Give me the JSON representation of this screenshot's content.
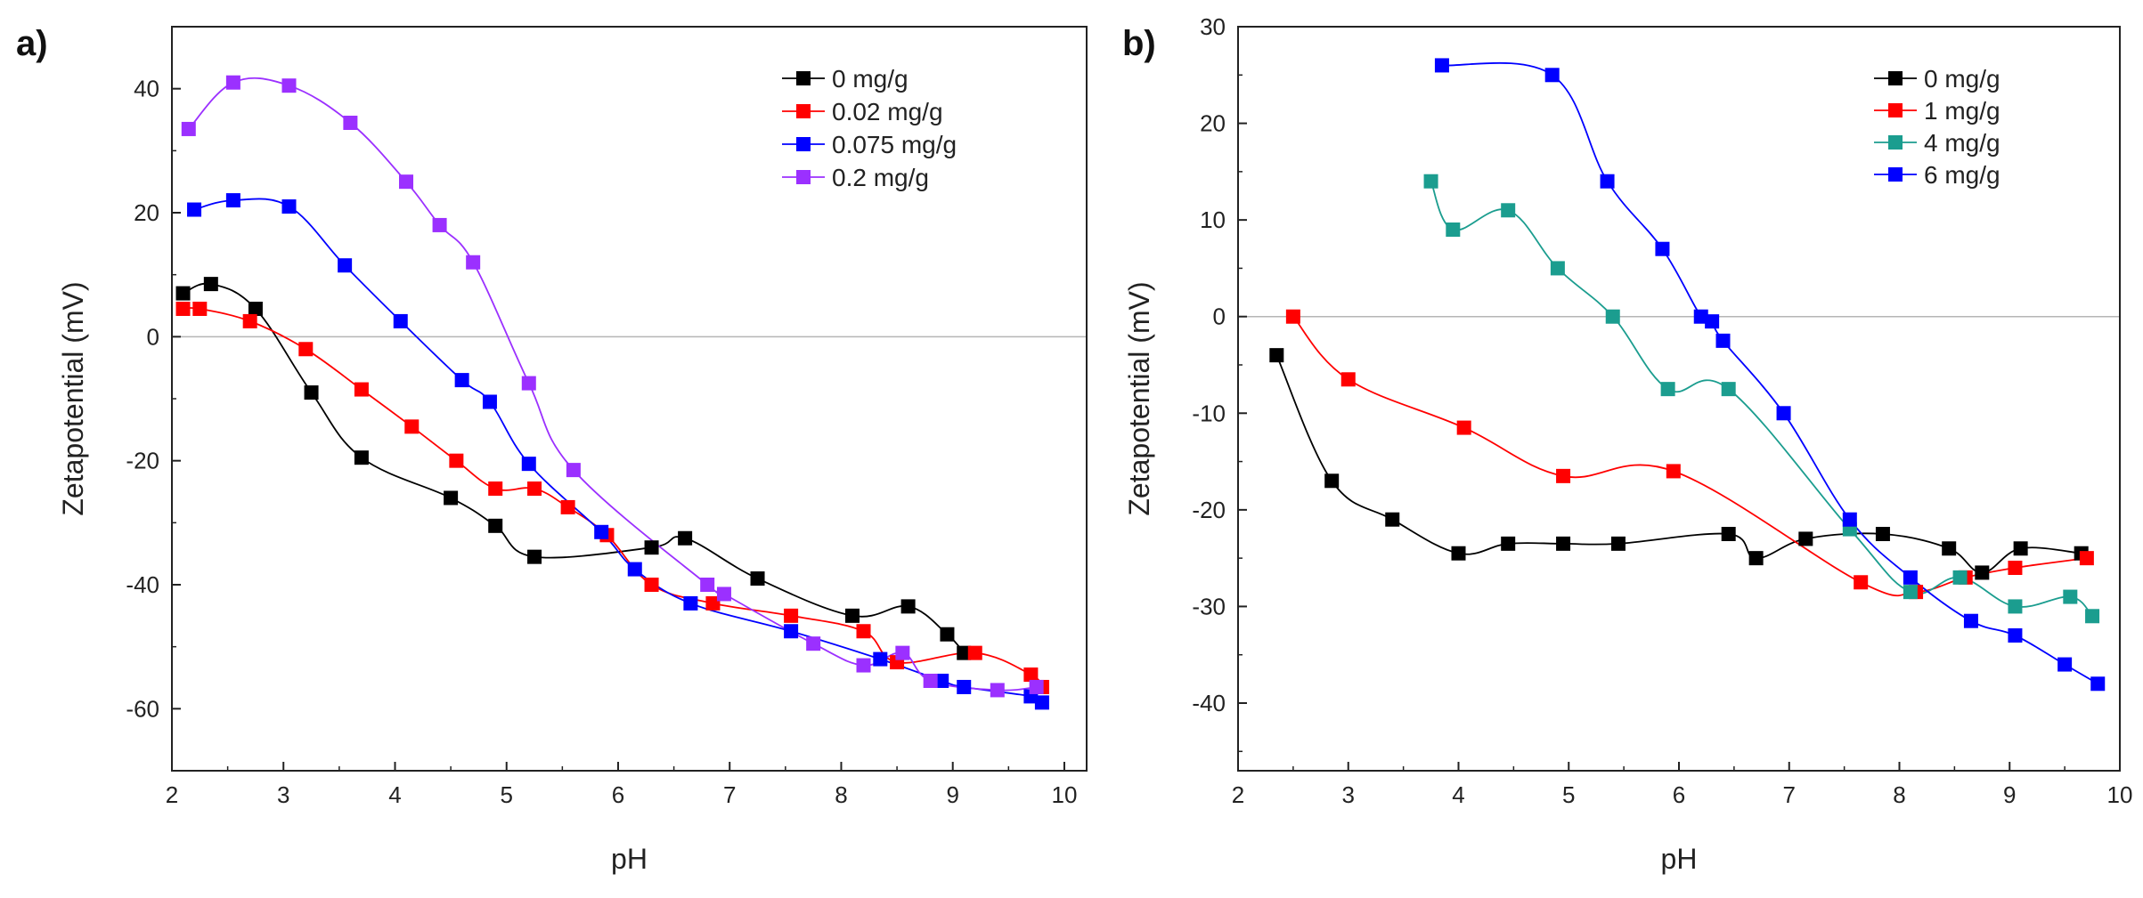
{
  "chart_data": [
    {
      "panel_label": "a)",
      "type": "scatter",
      "title": "",
      "xlabel": "pH",
      "ylabel": "Zetapotential (mV)",
      "xlim": [
        2,
        10.2
      ],
      "ylim": [
        -70,
        50
      ],
      "xticks": [
        2,
        3,
        4,
        5,
        6,
        7,
        8,
        9,
        10
      ],
      "yticks": [
        -60,
        -40,
        -20,
        0,
        20,
        40
      ],
      "zero_line": true,
      "legend_position": "top-right",
      "series": [
        {
          "name": "0 mg/g",
          "color": "#000000",
          "x": [
            2.1,
            2.35,
            2.75,
            3.25,
            3.7,
            4.5,
            4.9,
            5.25,
            6.3,
            6.6,
            7.25,
            8.1,
            8.6,
            8.95,
            9.1
          ],
          "y": [
            7,
            8.5,
            4.5,
            -9,
            -19.5,
            -26,
            -30.5,
            -35.5,
            -34,
            -32.5,
            -39,
            -45,
            -43.5,
            -48,
            -51
          ]
        },
        {
          "name": "0.02 mg/g",
          "color": "#ff0000",
          "x": [
            2.1,
            2.25,
            2.7,
            3.2,
            3.7,
            4.15,
            4.55,
            4.9,
            5.25,
            5.55,
            5.9,
            6.3,
            6.85,
            7.55,
            8.2,
            8.5,
            9.2,
            9.7,
            9.8
          ],
          "y": [
            4.5,
            4.5,
            2.5,
            -2,
            -8.5,
            -14.5,
            -20,
            -24.5,
            -24.5,
            -27.5,
            -32,
            -40,
            -43,
            -45,
            -47.5,
            -52.5,
            -51,
            -54.5,
            -56.5
          ]
        },
        {
          "name": "0.075 mg/g",
          "color": "#0000ff",
          "x": [
            2.2,
            2.55,
            3.05,
            3.55,
            4.05,
            4.6,
            4.85,
            5.2,
            5.85,
            6.15,
            6.65,
            7.55,
            8.35,
            8.9,
            9.1,
            9.7,
            9.8
          ],
          "y": [
            20.5,
            22,
            21,
            11.5,
            2.5,
            -7,
            -10.5,
            -20.5,
            -31.5,
            -37.5,
            -43,
            -47.5,
            -52,
            -55.5,
            -56.5,
            -58,
            -59
          ]
        },
        {
          "name": "0.2 mg/g",
          "color": "#9b30ff",
          "x": [
            2.15,
            2.55,
            3.05,
            3.6,
            4.1,
            4.4,
            4.7,
            5.2,
            5.6,
            6.8,
            6.95,
            7.75,
            8.2,
            8.55,
            8.8,
            9.4,
            9.75
          ],
          "y": [
            33.5,
            41,
            40.5,
            34.5,
            25,
            18,
            12,
            -7.5,
            -21.5,
            -40,
            -41.5,
            -49.5,
            -53,
            -51,
            -55.5,
            -57,
            -56.5
          ]
        }
      ]
    },
    {
      "panel_label": "b)",
      "type": "scatter",
      "title": "",
      "xlabel": "pH",
      "ylabel": "Zetapotential (mV)",
      "xlim": [
        2,
        10
      ],
      "ylim": [
        -47,
        30
      ],
      "xticks": [
        2,
        3,
        4,
        5,
        6,
        7,
        8,
        9,
        10
      ],
      "yticks": [
        -40,
        -30,
        -20,
        -10,
        0,
        10,
        20,
        30
      ],
      "zero_line": true,
      "legend_position": "top-right",
      "series": [
        {
          "name": "0 mg/g",
          "color": "#000000",
          "x": [
            2.35,
            2.85,
            3.4,
            4.0,
            4.45,
            4.95,
            5.45,
            6.45,
            6.7,
            7.15,
            7.85,
            8.45,
            8.75,
            9.1,
            9.65
          ],
          "y": [
            -4,
            -17,
            -21,
            -24.5,
            -23.5,
            -23.5,
            -23.5,
            -22.5,
            -25,
            -23,
            -22.5,
            -24,
            -26.5,
            -24,
            -24.5
          ]
        },
        {
          "name": "1 mg/g",
          "color": "#ff0000",
          "x": [
            2.5,
            3.0,
            4.05,
            4.95,
            5.95,
            7.65,
            8.15,
            8.6,
            9.05,
            9.7
          ],
          "y": [
            0,
            -6.5,
            -11.5,
            -16.5,
            -16,
            -27.5,
            -28.5,
            -27,
            -26,
            -25
          ]
        },
        {
          "name": "4 mg/g",
          "color": "#1b9d8f",
          "x": [
            3.75,
            3.95,
            4.45,
            4.9,
            5.4,
            5.9,
            6.45,
            7.55,
            8.1,
            8.55,
            9.05,
            9.55,
            9.75
          ],
          "y": [
            14,
            9,
            11,
            5,
            0,
            -7.5,
            -7.5,
            -22,
            -28.5,
            -27,
            -30,
            -29,
            -31
          ]
        },
        {
          "name": "6 mg/g",
          "color": "#0000ff",
          "x": [
            3.85,
            4.85,
            5.35,
            5.85,
            6.2,
            6.3,
            6.4,
            6.95,
            7.55,
            8.1,
            8.65,
            9.05,
            9.5,
            9.8
          ],
          "y": [
            26,
            25,
            14,
            7,
            0,
            -0.5,
            -2.5,
            -10,
            -21,
            -27,
            -31.5,
            -33,
            -36,
            -38
          ]
        }
      ]
    }
  ]
}
